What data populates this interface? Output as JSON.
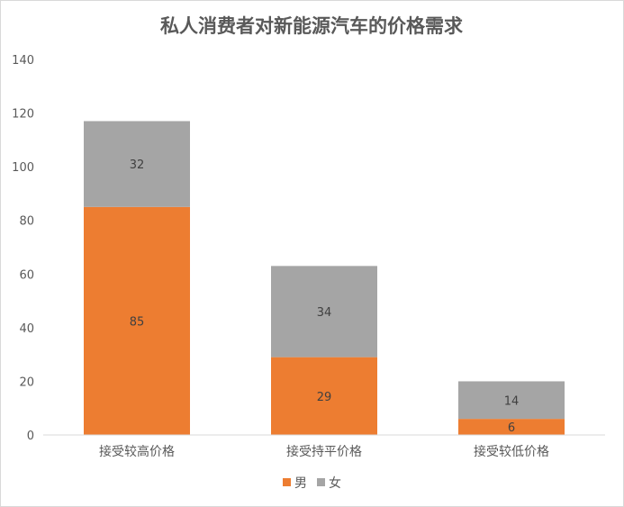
{
  "chart_data": {
    "type": "bar",
    "stacked": true,
    "title": "私人消费者对新能源汽车的价格需求",
    "xlabel": "",
    "ylabel": "",
    "categories": [
      "接受较高价格",
      "接受持平价格",
      "接受较低价格"
    ],
    "series": [
      {
        "name": "男",
        "values": [
          85,
          29,
          6
        ],
        "color": "#ED7D31"
      },
      {
        "name": "女",
        "values": [
          32,
          34,
          14
        ],
        "color": "#A5A5A5"
      }
    ],
    "ylim": [
      0,
      140
    ],
    "yticks": [
      0,
      20,
      40,
      60,
      80,
      100,
      120,
      140
    ],
    "grid": false,
    "data_labels": true,
    "legend_position": "bottom"
  }
}
